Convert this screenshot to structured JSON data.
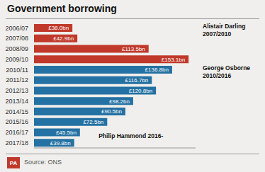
{
  "chart_data": {
    "type": "bar",
    "orientation": "horizontal",
    "title": "Government borrowing",
    "categories": [
      "2006/07",
      "2007/08",
      "2008/09",
      "2009/10",
      "2010/11",
      "2011/12",
      "2012/13",
      "2013/14",
      "2014/15",
      "2015/16",
      "2016/17",
      "2017/18"
    ],
    "values": [
      38.0,
      42.9,
      113.5,
      153.1,
      136.8,
      116.7,
      120.8,
      98.2,
      90.5,
      72.5,
      45.5,
      39.8
    ],
    "value_labels": [
      "£38.0bn",
      "£42.9bn",
      "£113.5bn",
      "£153.1bn",
      "£136.8bn",
      "£116.7bn",
      "£120.8bn",
      "£98.2bn",
      "£90.5bn",
      "£72.5bn",
      "£45.5bn",
      "£39.8bn"
    ],
    "colors": [
      "#c0392b",
      "#c0392b",
      "#c0392b",
      "#c0392b",
      "#2471a3",
      "#2471a3",
      "#2471a3",
      "#2471a3",
      "#2471a3",
      "#2471a3",
      "#2471a3",
      "#2471a3"
    ],
    "xlim": [
      0,
      160
    ],
    "data_labels": true,
    "tick_labels": "y",
    "grid": false,
    "annotations": [
      "Alistair Darling\n2007/2010",
      "George Osborne\n2010/2016",
      "Philip Hammond 2016-"
    ],
    "logo": "PA",
    "source": "Source: ONS"
  }
}
